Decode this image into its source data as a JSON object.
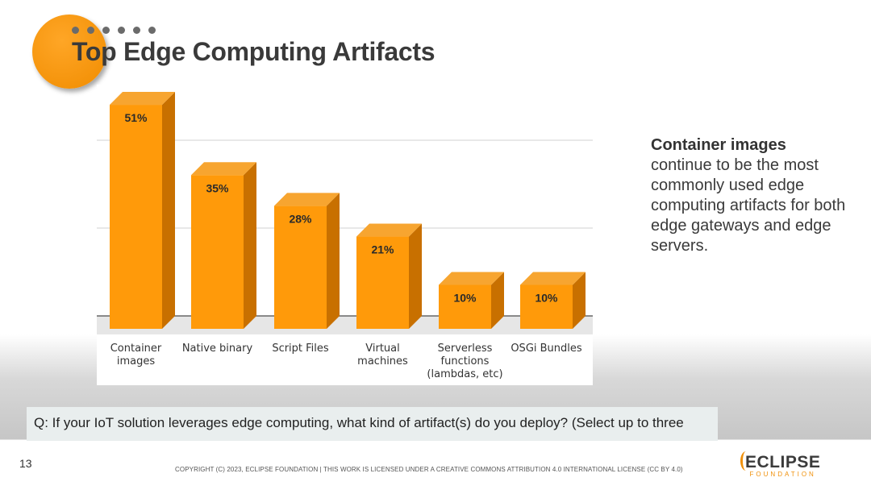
{
  "slide": {
    "title": "Top Edge Computing Artifacts",
    "description_bold": "Container images",
    "description_rest": "continue to be the most commonly used edge computing artifacts for both edge gateways and edge servers.",
    "question": "Q: If your IoT solution leverages edge computing, what kind of artifact(s) do you deploy? (Select up to three",
    "page_number": "13",
    "copyright": "COPYRIGHT (C) 2023, ECLIPSE FOUNDATION | THIS WORK IS LICENSED UNDER A CREATIVE COMMONS ATTRIBUTION 4.0 INTERNATIONAL LICENSE (CC BY 4.0)",
    "logo_text": "ECLIPSE",
    "logo_subtext": "FOUNDATION"
  },
  "colors": {
    "bar_front": "#ff9a0a",
    "bar_side": "#c87000",
    "bar_top": "#f7a530",
    "accent": "#f0900a"
  },
  "chart_data": {
    "type": "bar",
    "style": "3d",
    "categories": [
      [
        "Container",
        "images"
      ],
      [
        "Native binary"
      ],
      [
        "Script Files"
      ],
      [
        "Virtual",
        "machines"
      ],
      [
        "Serverless",
        "functions",
        "(lambdas, etc)"
      ],
      [
        "OSGi Bundles"
      ]
    ],
    "values": [
      51,
      35,
      28,
      21,
      10,
      10
    ],
    "data_labels": [
      "51%",
      "35%",
      "28%",
      "21%",
      "10%",
      "10%"
    ],
    "unit": "%",
    "ylim": [
      0,
      60
    ],
    "grid": true,
    "gridlines": [
      20,
      40
    ],
    "legend": "none"
  }
}
